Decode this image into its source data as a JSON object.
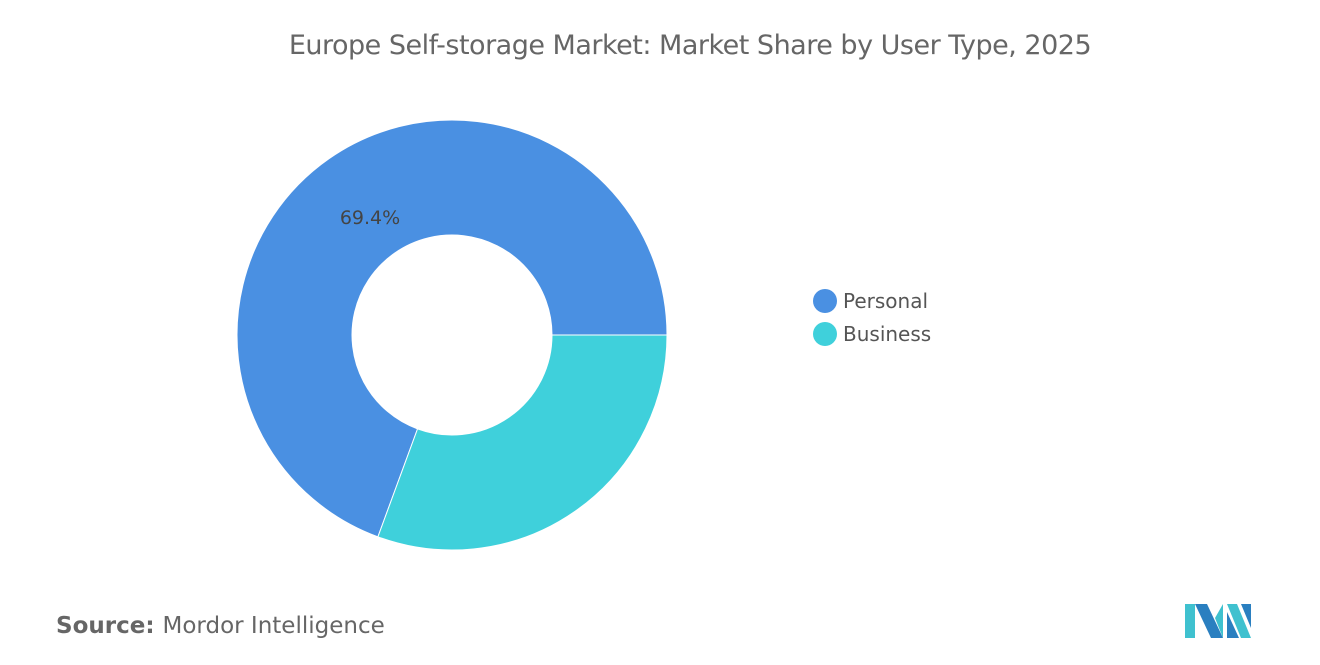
{
  "chart_data": {
    "type": "pie",
    "style": "donut",
    "title": "Europe Self-storage Market: Market Share by User Type, 2025",
    "series": [
      {
        "name": "Personal",
        "value": 69.4,
        "color": "#4a90e2",
        "label": "69.4%"
      },
      {
        "name": "Business",
        "value": 30.6,
        "color": "#3fd0db",
        "label": ""
      }
    ],
    "legend_position": "right"
  },
  "source": {
    "label": "Source:",
    "value": "Mordor Intelligence"
  },
  "logo": {
    "name": "mordor-intelligence-logo",
    "colors": [
      "#2a7fc0",
      "#3fc1cf"
    ]
  }
}
